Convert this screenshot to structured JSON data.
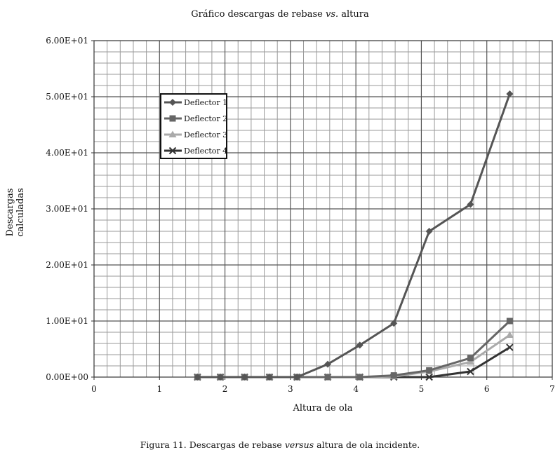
{
  "chart_data": {
    "type": "line",
    "title_prefix": "Gráfico descargas de rebase ",
    "title_em": "vs.",
    "title_suffix": " altura",
    "xlabel": "Altura de ola",
    "ylabel": "Descargas calculadas",
    "xlim": [
      0,
      7
    ],
    "ylim": [
      0,
      60
    ],
    "x_ticks": [
      "0",
      "1",
      "2",
      "3",
      "4",
      "5",
      "6",
      "7"
    ],
    "y_ticks": [
      "0.00E+00",
      "1.00E+01",
      "2.00E+01",
      "3.00E+01",
      "4.00E+01",
      "5.00E+01",
      "6.00E+01"
    ],
    "grid": true,
    "legend_position": "upper-left",
    "x": [
      1.58,
      1.93,
      2.3,
      2.68,
      3.1,
      3.57,
      4.06,
      4.58,
      5.12,
      5.75,
      6.35
    ],
    "series": [
      {
        "name": "Deflector 1",
        "marker": "diamond",
        "color": "#555555",
        "values": [
          0,
          0,
          0,
          0,
          0,
          2.3,
          5.7,
          9.6,
          26.0,
          30.8,
          50.5
        ]
      },
      {
        "name": "Deflector 2",
        "marker": "square",
        "color": "#666666",
        "values": [
          0,
          0,
          0,
          0,
          0,
          0,
          0,
          0.3,
          1.2,
          3.4,
          10.0
        ]
      },
      {
        "name": "Deflector 3",
        "marker": "triangle",
        "color": "#aaaaaa",
        "values": [
          0,
          0,
          0,
          0,
          0,
          0,
          0,
          0.1,
          1.0,
          2.7,
          7.5
        ]
      },
      {
        "name": "Deflector 4",
        "marker": "x",
        "color": "#333333",
        "values": [
          0,
          0,
          0,
          0,
          0,
          0,
          0,
          0,
          0,
          1.0,
          5.3
        ]
      }
    ]
  },
  "caption": {
    "prefix": "Figura 11. Descargas de rebase ",
    "em": "versus",
    "suffix": " altura de ola incidente."
  }
}
